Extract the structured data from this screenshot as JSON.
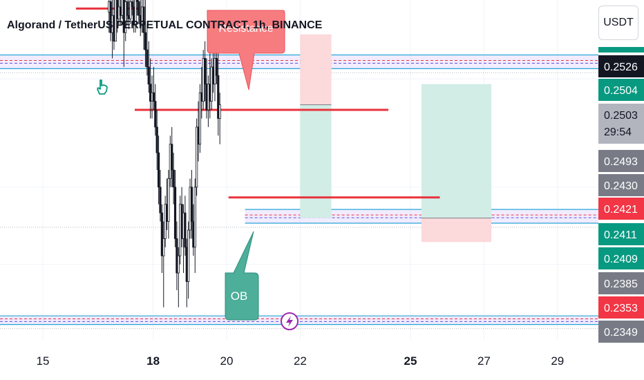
{
  "header": {
    "title": "Algorand / TetherUS PERPETUAL CONTRACT, 1h, BINANCE",
    "currency_button": "USDT"
  },
  "annotations": {
    "resistance_label": "Resistance",
    "ob_label": "OB"
  },
  "icons": [
    "hand-pointer-icon",
    "lightning-icon"
  ],
  "colors": {
    "bull_tag": "#089981",
    "bear_tag": "#f23645",
    "neutral_tag": "#787b86",
    "dark_tag": "#131722",
    "resistance_bubble": "#f77c80",
    "ob_bubble": "#4dae9a",
    "zone_line": "#26a5d8",
    "level_line": "#e8323c",
    "long_target": "#d2ede6",
    "long_stop": "#fcd9db"
  },
  "chart_data": {
    "type": "candlestick",
    "title": "Algorand / TetherUS PERPETUAL CONTRACT, 1h, BINANCE",
    "x_ticks": [
      {
        "day": 15,
        "label": "15",
        "bold": false
      },
      {
        "day": 18,
        "label": "18",
        "bold": true
      },
      {
        "day": 20,
        "label": "20",
        "bold": false
      },
      {
        "day": 22,
        "label": "22",
        "bold": false
      },
      {
        "day": 25,
        "label": "25",
        "bold": true
      },
      {
        "day": 27,
        "label": "27",
        "bold": false
      },
      {
        "day": 29,
        "label": "29",
        "bold": false
      }
    ],
    "price_range": [
      0.2341,
      0.2539
    ],
    "price_tags": [
      {
        "value": "0.2526",
        "color": "dark"
      },
      {
        "value": "0.2504",
        "color": "bull"
      },
      {
        "value": "0.2503",
        "sub": "29:54",
        "color": "neutral_light"
      },
      {
        "value": "0.2493",
        "color": "neutral"
      },
      {
        "value": "0.2430",
        "color": "neutral"
      },
      {
        "value": "0.2421",
        "color": "bear"
      },
      {
        "value": "0.2411",
        "color": "bull"
      },
      {
        "value": "0.2409",
        "color": "bull"
      },
      {
        "value": "0.2385",
        "color": "neutral"
      },
      {
        "value": "0.2353",
        "color": "bear"
      },
      {
        "value": "0.2349",
        "color": "neutral"
      }
    ],
    "zones": [
      {
        "name": "upper-zone",
        "top": 0.2507,
        "bottom": 0.2499
      },
      {
        "name": "middle-zone",
        "top": 0.2417,
        "bottom": 0.2409
      },
      {
        "name": "lower-zone",
        "top": 0.2355,
        "bottom": 0.235
      }
    ],
    "levels": [
      {
        "name": "top-left-level",
        "price": 0.2534,
        "start_day": 15.9,
        "end_day": 17.6
      },
      {
        "name": "resistance-level",
        "price": 0.2475,
        "start_day": 17.5,
        "end_day": 24.4
      },
      {
        "name": "mid-level",
        "price": 0.2424,
        "start_day": 20.05,
        "end_day": 25.8
      }
    ],
    "positions": [
      {
        "name": "position-1",
        "start_day": 22.0,
        "end_day": 22.85,
        "stop": 0.2519,
        "entry": 0.2478,
        "target": 0.2412
      },
      {
        "name": "position-2",
        "start_day": 25.3,
        "end_day": 27.2,
        "stop": 0.2398,
        "entry": 0.2412,
        "target": 0.249
      }
    ],
    "candles_start_day": 16.8,
    "candle_step_days": 0.045,
    "candles": [
      [
        0.2532,
        0.2545,
        0.252,
        0.2538
      ],
      [
        0.2538,
        0.2545,
        0.2515,
        0.252
      ],
      [
        0.252,
        0.254,
        0.2505,
        0.253
      ],
      [
        0.253,
        0.2548,
        0.251,
        0.2515
      ],
      [
        0.2515,
        0.2545,
        0.2515,
        0.254
      ],
      [
        0.254,
        0.2545,
        0.252,
        0.2528
      ],
      [
        0.2528,
        0.2542,
        0.2525,
        0.2535
      ],
      [
        0.2535,
        0.2545,
        0.2525,
        0.253
      ],
      [
        0.253,
        0.2545,
        0.2528,
        0.254
      ],
      [
        0.254,
        0.2545,
        0.25,
        0.252
      ],
      [
        0.252,
        0.2545,
        0.2515,
        0.2538
      ],
      [
        0.2538,
        0.2545,
        0.2525,
        0.253
      ],
      [
        0.253,
        0.2545,
        0.2522,
        0.2528
      ],
      [
        0.2528,
        0.2545,
        0.2525,
        0.2538
      ],
      [
        0.2538,
        0.2545,
        0.253,
        0.2535
      ],
      [
        0.2535,
        0.2545,
        0.252,
        0.2525
      ],
      [
        0.2525,
        0.2545,
        0.252,
        0.254
      ],
      [
        0.254,
        0.2545,
        0.253,
        0.2538
      ],
      [
        0.2538,
        0.2545,
        0.2525,
        0.253
      ],
      [
        0.253,
        0.2545,
        0.2518,
        0.2525
      ],
      [
        0.2525,
        0.254,
        0.252,
        0.2535
      ],
      [
        0.2535,
        0.2545,
        0.251,
        0.252
      ],
      [
        0.252,
        0.254,
        0.25,
        0.251
      ],
      [
        0.251,
        0.2525,
        0.2495,
        0.25
      ],
      [
        0.25,
        0.2515,
        0.2485,
        0.249
      ],
      [
        0.249,
        0.2505,
        0.247,
        0.248
      ],
      [
        0.248,
        0.2495,
        0.247,
        0.2485
      ],
      [
        0.2485,
        0.25,
        0.2475,
        0.248
      ],
      [
        0.248,
        0.249,
        0.246,
        0.2465
      ],
      [
        0.2465,
        0.2475,
        0.244,
        0.245
      ],
      [
        0.245,
        0.246,
        0.242,
        0.243
      ],
      [
        0.243,
        0.244,
        0.241,
        0.2415
      ],
      [
        0.2415,
        0.242,
        0.238,
        0.239
      ],
      [
        0.239,
        0.241,
        0.236,
        0.24
      ],
      [
        0.24,
        0.2425,
        0.2395,
        0.242
      ],
      [
        0.242,
        0.2435,
        0.2405,
        0.241
      ],
      [
        0.241,
        0.244,
        0.24,
        0.2435
      ],
      [
        0.2435,
        0.246,
        0.243,
        0.2455
      ],
      [
        0.2455,
        0.2465,
        0.243,
        0.244
      ],
      [
        0.244,
        0.245,
        0.242,
        0.243
      ],
      [
        0.243,
        0.244,
        0.2395,
        0.24
      ],
      [
        0.24,
        0.241,
        0.237,
        0.238
      ],
      [
        0.238,
        0.2395,
        0.236,
        0.239
      ],
      [
        0.239,
        0.2425,
        0.2385,
        0.242
      ],
      [
        0.242,
        0.243,
        0.2395,
        0.24
      ],
      [
        0.24,
        0.242,
        0.238,
        0.2415
      ],
      [
        0.2415,
        0.2425,
        0.239,
        0.2395
      ],
      [
        0.2395,
        0.24,
        0.236,
        0.2375
      ],
      [
        0.2375,
        0.241,
        0.2365,
        0.2405
      ],
      [
        0.2405,
        0.2435,
        0.24,
        0.243
      ],
      [
        0.243,
        0.244,
        0.24,
        0.241
      ],
      [
        0.241,
        0.242,
        0.239,
        0.2395
      ],
      [
        0.2395,
        0.2435,
        0.238,
        0.243
      ],
      [
        0.243,
        0.247,
        0.2425,
        0.2465
      ],
      [
        0.2465,
        0.248,
        0.2445,
        0.2455
      ],
      [
        0.2455,
        0.249,
        0.245,
        0.2485
      ],
      [
        0.2485,
        0.25,
        0.247,
        0.248
      ],
      [
        0.248,
        0.251,
        0.2475,
        0.2505
      ],
      [
        0.2505,
        0.2515,
        0.248,
        0.249
      ],
      [
        0.249,
        0.2505,
        0.247,
        0.2475
      ],
      [
        0.2475,
        0.2495,
        0.2465,
        0.249
      ],
      [
        0.249,
        0.251,
        0.247,
        0.248
      ],
      [
        0.248,
        0.2505,
        0.2475,
        0.25
      ],
      [
        0.25,
        0.2515,
        0.2485,
        0.249
      ],
      [
        0.249,
        0.251,
        0.248,
        0.2505
      ],
      [
        0.2505,
        0.2518,
        0.249,
        0.2495
      ],
      [
        0.2495,
        0.2512,
        0.246,
        0.247
      ],
      [
        0.247,
        0.2485,
        0.2455,
        0.2478
      ]
    ]
  }
}
